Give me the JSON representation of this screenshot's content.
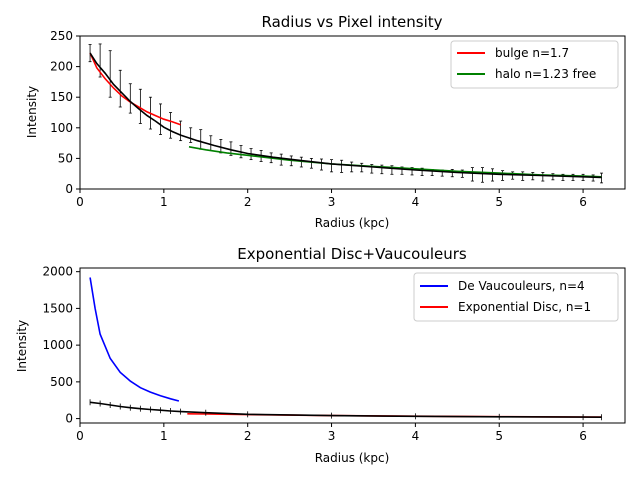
{
  "chart_data": [
    {
      "type": "line",
      "title": "Radius vs Pixel intensity",
      "xlabel": "Radius (kpc)",
      "ylabel": "Intensity",
      "xlim": [
        0,
        6.5
      ],
      "ylim": [
        0,
        250
      ],
      "xticks": [
        0,
        1,
        2,
        3,
        4,
        5,
        6
      ],
      "yticks": [
        0,
        50,
        100,
        150,
        200,
        250
      ],
      "grid": false,
      "legend_position": "top-right",
      "legend": [
        "bulge n=1.7",
        "halo n=1.23 free"
      ],
      "colors": {
        "bulge": "#ff0000",
        "halo": "#008000",
        "data": "#000000"
      },
      "errorbars": {
        "x": [
          0.12,
          0.24,
          0.36,
          0.48,
          0.6,
          0.72,
          0.84,
          0.96,
          1.08,
          1.2,
          1.32,
          1.44,
          1.56,
          1.68,
          1.8,
          1.92,
          2.04,
          2.16,
          2.28,
          2.4,
          2.52,
          2.64,
          2.76,
          2.88,
          3.0,
          3.12,
          3.24,
          3.36,
          3.48,
          3.6,
          3.72,
          3.84,
          3.96,
          4.08,
          4.2,
          4.32,
          4.44,
          4.56,
          4.68,
          4.8,
          4.92,
          5.04,
          5.16,
          5.28,
          5.4,
          5.52,
          5.64,
          5.76,
          5.88,
          6.0,
          6.12,
          6.22
        ],
        "y": [
          222,
          210,
          188,
          164,
          148,
          135,
          124,
          114,
          104,
          95,
          88,
          81,
          75,
          70,
          66,
          61,
          57,
          54,
          51,
          48,
          46,
          44,
          42,
          40,
          38,
          37,
          36,
          35,
          33,
          32,
          31,
          30,
          29,
          28,
          27,
          26,
          26,
          25,
          24,
          23,
          23,
          22,
          22,
          21,
          21,
          20,
          20,
          19,
          19,
          19,
          18,
          18
        ],
        "err": [
          14,
          27,
          38,
          30,
          24,
          28,
          26,
          25,
          21,
          16,
          12,
          16,
          12,
          11,
          11,
          10,
          9,
          9,
          8,
          9,
          8,
          8,
          8,
          9,
          10,
          10,
          8,
          7,
          7,
          7,
          7,
          6,
          6,
          6,
          5,
          5,
          6,
          6,
          11,
          12,
          10,
          8,
          6,
          7,
          6,
          7,
          5,
          5,
          5,
          5,
          5,
          8
        ]
      },
      "series": [
        {
          "name": "bulge n=1.7",
          "x": [
            0.12,
            0.2,
            0.3,
            0.4,
            0.5,
            0.6,
            0.7,
            0.8,
            0.9,
            1.0,
            1.1,
            1.2
          ],
          "y": [
            222,
            198,
            180,
            165,
            152,
            142,
            134,
            126,
            120,
            114,
            110,
            105
          ]
        },
        {
          "name": "halo n=1.23 free",
          "x": [
            1.3,
            1.5,
            1.75,
            2.0,
            2.5,
            3.0,
            3.5,
            4.0,
            4.5,
            5.0,
            5.5,
            6.0,
            6.22
          ],
          "y": [
            69,
            64,
            59,
            55,
            47,
            41,
            37,
            33,
            29,
            26,
            23,
            21,
            20
          ]
        },
        {
          "x": [
            0.12,
            0.2,
            0.3,
            0.4,
            0.5,
            0.6,
            0.7,
            0.8,
            0.9,
            1.0,
            1.1,
            1.2,
            1.4,
            1.6,
            1.8,
            2.0,
            2.3,
            2.6,
            3.0,
            3.5,
            4.0,
            4.5,
            5.0,
            5.5,
            6.0,
            6.22
          ],
          "y": [
            222,
            205,
            189,
            171,
            157,
            143,
            131,
            120,
            111,
            101,
            94,
            88,
            79,
            71,
            64,
            58,
            52,
            47,
            41,
            36,
            31,
            27,
            24,
            22,
            20,
            19
          ]
        }
      ]
    },
    {
      "type": "line",
      "title": "Exponential Disc+Vaucouleurs",
      "xlabel": "Radius (kpc)",
      "ylabel": "Intensity",
      "xlim": [
        0,
        6.5
      ],
      "ylim": [
        -60,
        2050
      ],
      "xticks": [
        0,
        1,
        2,
        3,
        4,
        5,
        6
      ],
      "yticks": [
        0,
        500,
        1000,
        1500,
        2000
      ],
      "grid": false,
      "legend_position": "top-right",
      "legend": [
        "De Vaucouleurs, n=4",
        "Exponential Disc, n=1"
      ],
      "colors": {
        "devauc": "#0000ff",
        "disc": "#ff0000",
        "data": "#000000"
      },
      "series": [
        {
          "name": "De Vaucouleurs, n=4",
          "x": [
            0.12,
            0.18,
            0.24,
            0.36,
            0.48,
            0.6,
            0.72,
            0.84,
            0.96,
            1.08,
            1.18
          ],
          "y": [
            1920,
            1500,
            1150,
            820,
            630,
            510,
            420,
            360,
            310,
            270,
            240
          ]
        },
        {
          "name": "Exponential Disc, n=1",
          "x": [
            1.28,
            1.5,
            2.0,
            3.0,
            4.0,
            5.0,
            6.0,
            6.22
          ],
          "y": [
            65,
            62,
            55,
            41,
            33,
            26,
            21,
            20
          ]
        },
        {
          "x": [
            0.12,
            0.24,
            0.36,
            0.48,
            0.6,
            0.72,
            0.84,
            0.96,
            1.08,
            1.2,
            1.5,
            2.0,
            3.0,
            4.0,
            5.0,
            6.0,
            6.22
          ],
          "y": [
            222,
            205,
            185,
            164,
            148,
            135,
            124,
            114,
            104,
            95,
            80,
            58,
            41,
            31,
            24,
            20,
            19
          ]
        }
      ]
    }
  ]
}
